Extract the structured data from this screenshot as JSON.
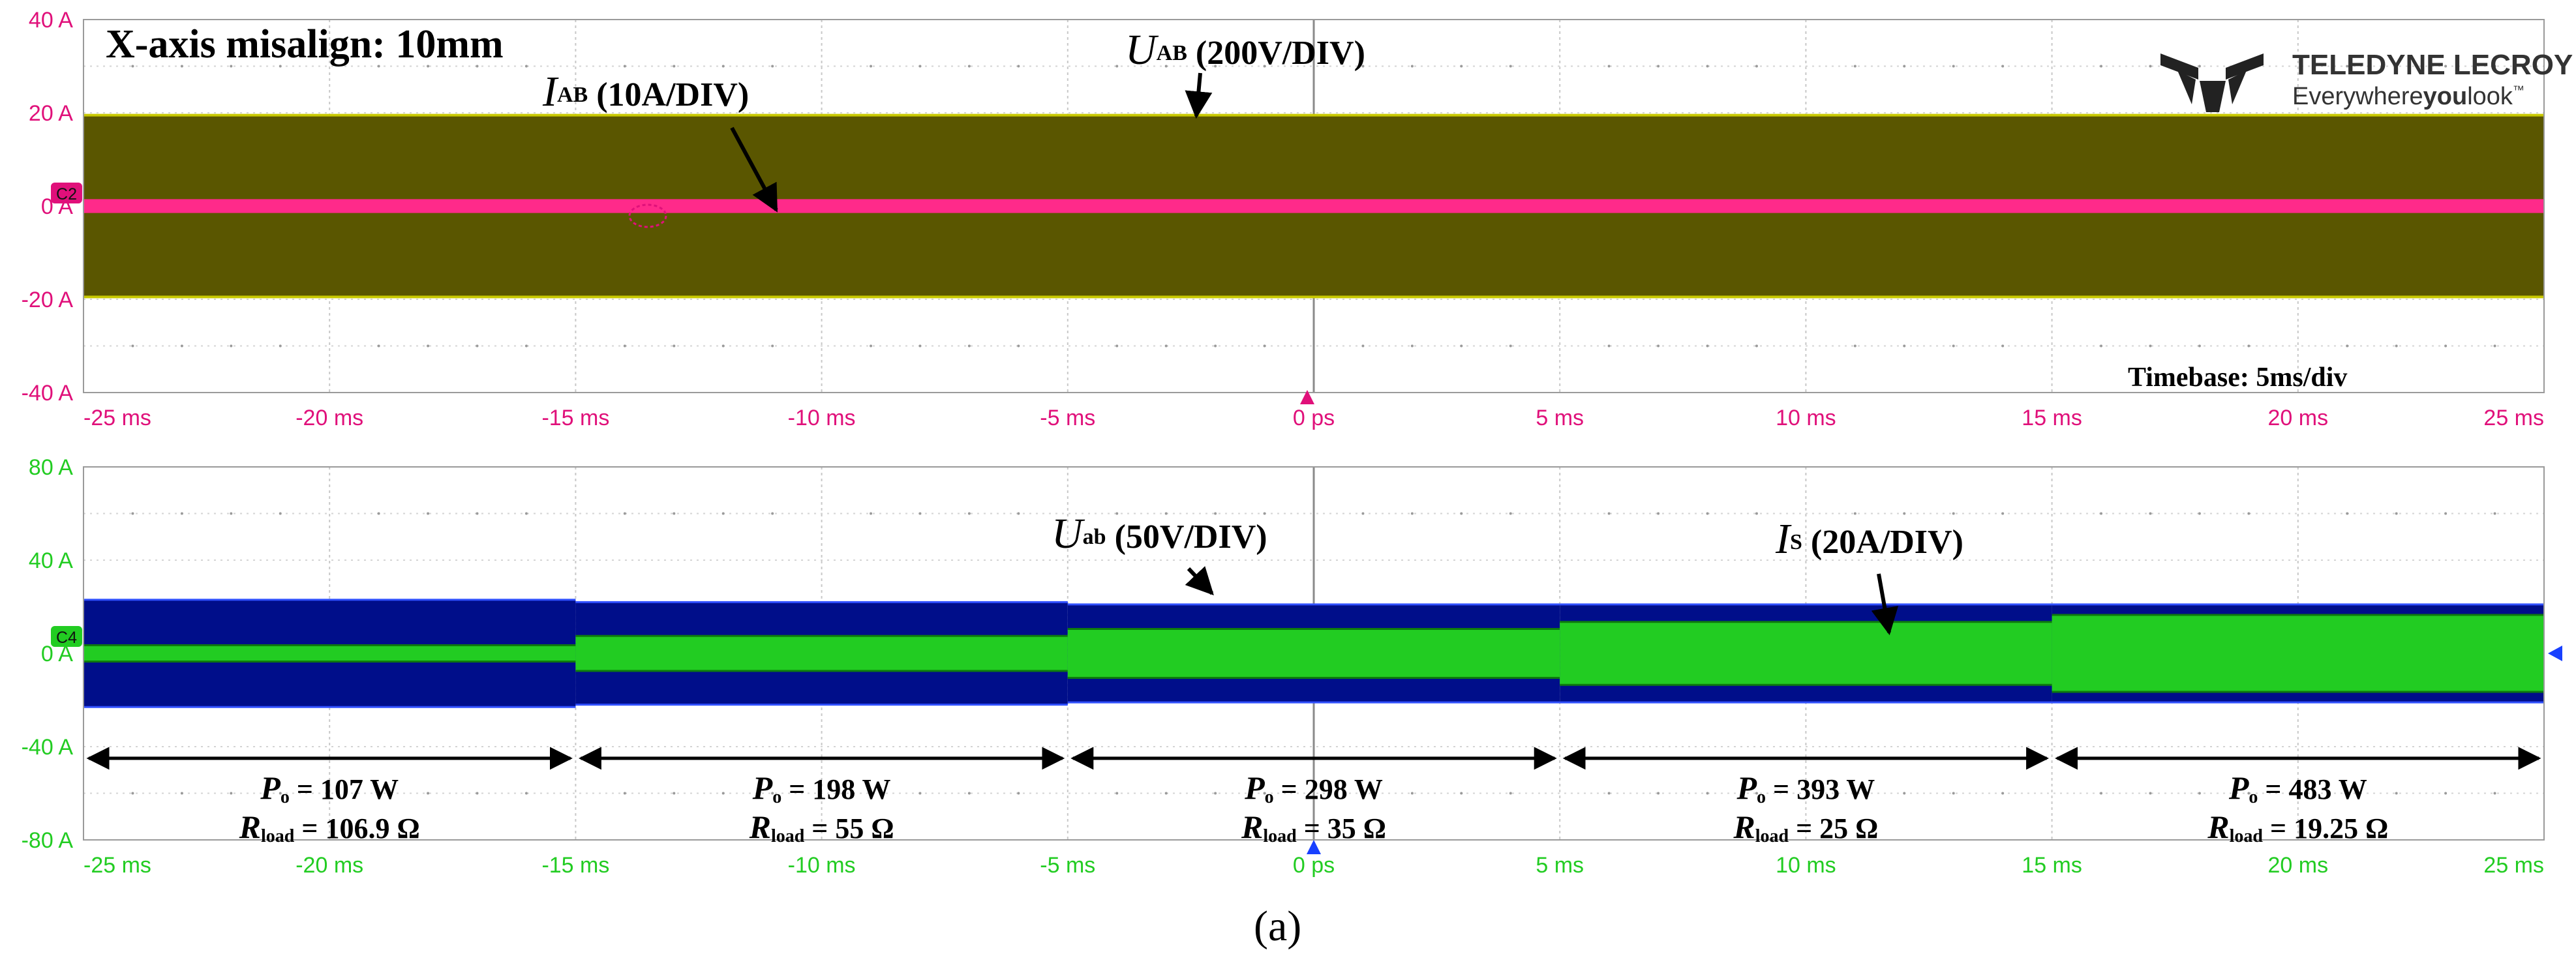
{
  "caption": "(a)",
  "logo": {
    "brand": "TELEDYNE LECROY",
    "tagline_a": "Everywhere",
    "tagline_b": "you",
    "tagline_c": "look",
    "tm": "™"
  },
  "colors": {
    "top_y": "#e0107a",
    "bottom_y": "#22cc22",
    "uab_top": "#5a5600",
    "uab_top_edge": "#c8c800",
    "iab": "#ff2a8a",
    "uab_bot": "#000e8a",
    "is": "#22cc22",
    "is_dark": "#0e7a0e"
  },
  "chart_data": [
    {
      "type": "line",
      "panel": "top",
      "title": "X-axis misalign: 10mm",
      "timebase": "Timebase: 5ms/div",
      "channel_badge": "C2",
      "xlim": [
        -25,
        25
      ],
      "ylim": [
        -40,
        40
      ],
      "x_ticks": [
        -25,
        -20,
        -15,
        -10,
        -5,
        0,
        5,
        10,
        15,
        20,
        25
      ],
      "x_tick_labels": [
        "-25 ms",
        "-20 ms",
        "-15 ms",
        "-10 ms",
        "-5 ms",
        "0 ps",
        "5 ms",
        "10 ms",
        "15 ms",
        "20 ms",
        "25 ms"
      ],
      "y_ticks": [
        40,
        20,
        0,
        -20,
        -40
      ],
      "y_tick_labels": [
        "40 A",
        "20 A",
        "0 A",
        "-20 A",
        "-40 A"
      ],
      "series": [
        {
          "name": "UAB (200V/DIV)",
          "kind": "band",
          "x": [
            -25,
            25
          ],
          "upper": [
            19.5,
            19.5
          ],
          "lower": [
            -19.5,
            -19.5
          ]
        },
        {
          "name": "IAB (10A/DIV)",
          "kind": "band",
          "x": [
            -25,
            25
          ],
          "upper": [
            1.2,
            1.2
          ],
          "lower": [
            -1.2,
            -1.2
          ]
        }
      ],
      "annotations": [
        {
          "var": "U",
          "sub": "AB",
          "rest": " (200V/DIV)"
        },
        {
          "var": "I",
          "sub": "AB",
          "rest": " (10A/DIV)"
        }
      ]
    },
    {
      "type": "line",
      "panel": "bottom",
      "channel_badge": "C4",
      "xlim": [
        -25,
        25
      ],
      "ylim": [
        -80,
        80
      ],
      "x_ticks": [
        -25,
        -20,
        -15,
        -10,
        -5,
        0,
        5,
        10,
        15,
        20,
        25
      ],
      "x_tick_labels": [
        "-25 ms",
        "-20 ms",
        "-15 ms",
        "-10 ms",
        "-5 ms",
        "0 ps",
        "5 ms",
        "10 ms",
        "15 ms",
        "20 ms",
        "25 ms"
      ],
      "y_ticks": [
        80,
        40,
        0,
        -40,
        -80
      ],
      "y_tick_labels": [
        "80 A",
        "40 A",
        "0 A",
        "-40 A",
        "-80 A"
      ],
      "series": [
        {
          "name": "Uab (50V/DIV)",
          "kind": "step_band",
          "segments": [
            {
              "x0": -25,
              "x1": -15,
              "upper": 23,
              "lower": -23
            },
            {
              "x0": -15,
              "x1": -5,
              "upper": 22,
              "lower": -22
            },
            {
              "x0": -5,
              "x1": 5,
              "upper": 21,
              "lower": -21
            },
            {
              "x0": 5,
              "x1": 15,
              "upper": 21,
              "lower": -21
            },
            {
              "x0": 15,
              "x1": 25,
              "upper": 21,
              "lower": -21
            }
          ]
        },
        {
          "name": "Is (20A/DIV)",
          "kind": "step_band",
          "segments": [
            {
              "x0": -25,
              "x1": -15,
              "upper": 3.5,
              "lower": -3.5
            },
            {
              "x0": -15,
              "x1": -5,
              "upper": 7.5,
              "lower": -7.5
            },
            {
              "x0": -5,
              "x1": 5,
              "upper": 10.5,
              "lower": -10.5
            },
            {
              "x0": 5,
              "x1": 15,
              "upper": 13.5,
              "lower": -13.5
            },
            {
              "x0": 15,
              "x1": 25,
              "upper": 16.5,
              "lower": -16.5
            }
          ]
        }
      ],
      "annotations": [
        {
          "var": "U",
          "sub": "ab",
          "rest": " (50V/DIV)"
        },
        {
          "var": "I",
          "sub": "S",
          "rest": " (20A/DIV)"
        }
      ],
      "load_steps": [
        {
          "x0": -25,
          "x1": -15,
          "po_value": " = 107 W",
          "rload_value": " = 106.9 Ω"
        },
        {
          "x0": -15,
          "x1": -5,
          "po_value": " = 198 W",
          "rload_value": " = 55 Ω"
        },
        {
          "x0": -5,
          "x1": 5,
          "po_value": " = 298 W",
          "rload_value": " = 35 Ω"
        },
        {
          "x0": 5,
          "x1": 15,
          "po_value": " = 393 W",
          "rload_value": " = 25 Ω"
        },
        {
          "x0": 15,
          "x1": 25,
          "po_value": " = 483 W",
          "rload_value": " = 19.25 Ω"
        }
      ],
      "load_labels": {
        "p": "P",
        "p_sub": "o",
        "r": "R",
        "r_sub": "load"
      }
    }
  ]
}
